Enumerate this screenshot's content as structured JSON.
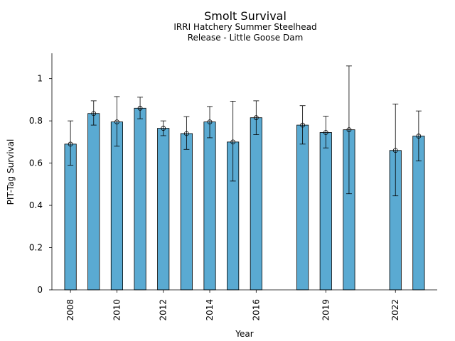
{
  "chart_data": {
    "type": "bar",
    "title": "Smolt Survival",
    "subtitle_lines": [
      "IRRI Hatchery Summer Steelhead",
      "Release - Little Goose Dam"
    ],
    "xlabel": "Year",
    "ylabel": "PIT-Tag Survival",
    "ylim": [
      0,
      1.12
    ],
    "xlim": [
      2007.2,
      2023.8
    ],
    "yticks": [
      0,
      0.2,
      0.4,
      0.6,
      0.8,
      1
    ],
    "ytick_labels": [
      "0",
      "0.2",
      "0.4",
      "0.6",
      "0.8",
      "1"
    ],
    "xticks": [
      2008,
      2010,
      2012,
      2014,
      2016,
      2019,
      2022
    ],
    "xtick_labels": [
      "2008",
      "2010",
      "2012",
      "2014",
      "2016",
      "2019",
      "2022"
    ],
    "bar_color": "#5aaad2",
    "grid": false,
    "bars": [
      {
        "year": 2008,
        "value": 0.69,
        "lower": 0.59,
        "upper": 0.8
      },
      {
        "year": 2009,
        "value": 0.835,
        "lower": 0.78,
        "upper": 0.895
      },
      {
        "year": 2010,
        "value": 0.795,
        "lower": 0.68,
        "upper": 0.915
      },
      {
        "year": 2011,
        "value": 0.86,
        "lower": 0.81,
        "upper": 0.912
      },
      {
        "year": 2012,
        "value": 0.765,
        "lower": 0.73,
        "upper": 0.8
      },
      {
        "year": 2013,
        "value": 0.74,
        "lower": 0.665,
        "upper": 0.82
      },
      {
        "year": 2014,
        "value": 0.795,
        "lower": 0.72,
        "upper": 0.868
      },
      {
        "year": 2015,
        "value": 0.7,
        "lower": 0.515,
        "upper": 0.893
      },
      {
        "year": 2016,
        "value": 0.815,
        "lower": 0.735,
        "upper": 0.895
      },
      {
        "year": 2018,
        "value": 0.78,
        "lower": 0.69,
        "upper": 0.872
      },
      {
        "year": 2019,
        "value": 0.745,
        "lower": 0.672,
        "upper": 0.822
      },
      {
        "year": 2020,
        "value": 0.758,
        "lower": 0.455,
        "upper": 1.06
      },
      {
        "year": 2022,
        "value": 0.66,
        "lower": 0.445,
        "upper": 0.88
      },
      {
        "year": 2023,
        "value": 0.728,
        "lower": 0.61,
        "upper": 0.847
      }
    ]
  }
}
